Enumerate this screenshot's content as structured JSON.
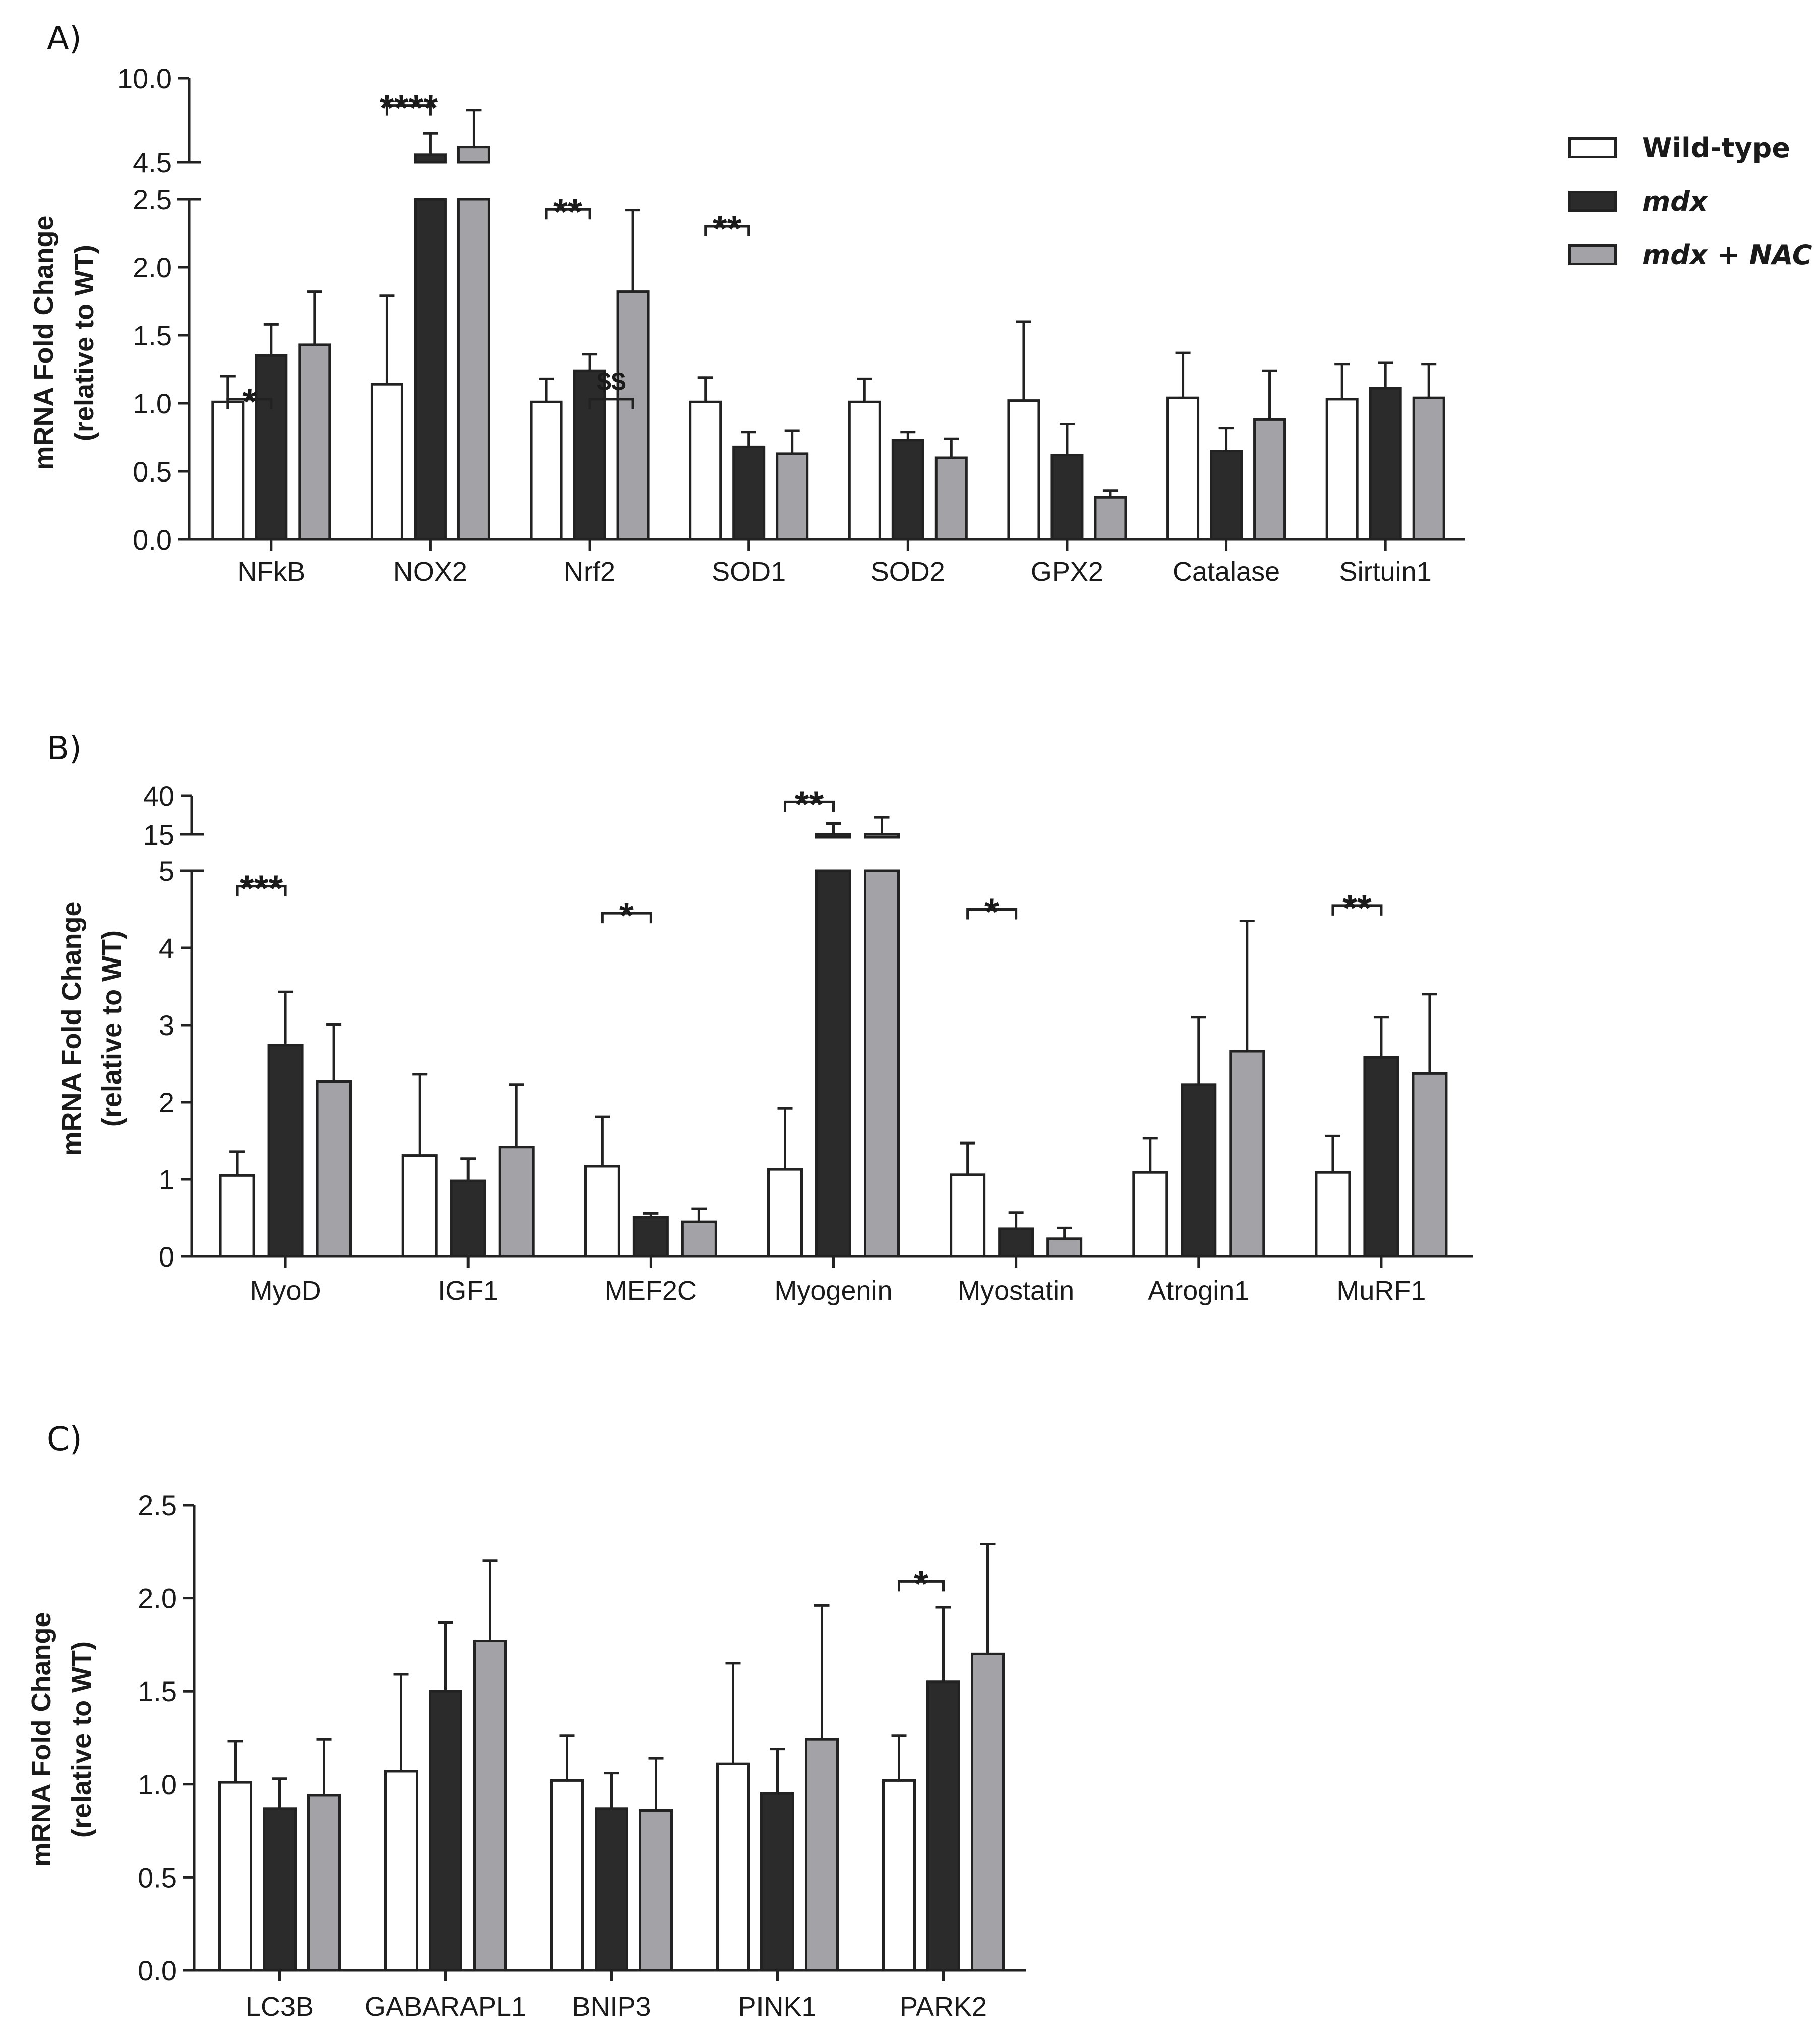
{
  "colors": {
    "wild_type": "#ffffff",
    "mdx": "#2b2b2b",
    "mdx_nac": "#a3a3a7",
    "axis": "#222222"
  },
  "legend": {
    "wild_type": "Wild-type",
    "mdx": "mdx",
    "mdx_nac": "mdx + NAC"
  },
  "chart_data": [
    {
      "type": "bar",
      "panel": "A)",
      "ylabel_line1": "mRNA Fold Change",
      "ylabel_line2": "(relative to WT)",
      "y_axis": "broken",
      "ylim_lower": [
        0,
        2.5
      ],
      "ylim_upper": [
        4.5,
        10.0
      ],
      "y_ticks_lower": [
        "0.0",
        "0.5",
        "1.0",
        "1.5",
        "2.0",
        "2.5"
      ],
      "y_ticks_upper": [
        "4.5",
        "10.0"
      ],
      "categories": [
        "NFkB",
        "NOX2",
        "Nrf2",
        "SOD1",
        "SOD2",
        "GPX2",
        "Catalase",
        "Sirtuin1"
      ],
      "series": [
        {
          "name": "Wild-type",
          "values": [
            1.01,
            1.14,
            1.01,
            1.01,
            1.01,
            1.02,
            1.04,
            1.03
          ],
          "errors": [
            0.19,
            0.65,
            0.17,
            0.18,
            0.17,
            0.58,
            0.33,
            0.26
          ]
        },
        {
          "name": "mdx",
          "values": [
            1.35,
            5.0,
            1.24,
            0.68,
            0.73,
            0.62,
            0.65,
            1.11
          ],
          "errors": [
            0.23,
            1.4,
            0.12,
            0.11,
            0.06,
            0.23,
            0.17,
            0.19
          ]
        },
        {
          "name": "mdx + NAC",
          "values": [
            1.43,
            5.5,
            1.82,
            0.63,
            0.6,
            0.31,
            0.88,
            1.04
          ],
          "errors": [
            0.39,
            2.4,
            0.6,
            0.17,
            0.14,
            0.05,
            0.36,
            0.25
          ]
        }
      ],
      "annotations": [
        {
          "label": "*",
          "category": 0,
          "from": 0,
          "to": 1,
          "y": 1.03
        },
        {
          "label": "****",
          "category": 1,
          "from": 0,
          "to": 1,
          "y": 8.2
        },
        {
          "label": "**",
          "category": 2,
          "from": 0,
          "to": 1,
          "y": 0.97
        },
        {
          "label": "$$",
          "category": 2,
          "from": 1,
          "to": 2,
          "y": 1.03
        },
        {
          "label": "**",
          "category": 3,
          "from": 0,
          "to": 1,
          "y": 0.92
        }
      ]
    },
    {
      "type": "bar",
      "panel": "B)",
      "ylabel_line1": "mRNA Fold Change",
      "ylabel_line2": "(relative to WT)",
      "y_axis": "broken",
      "ylim_lower": [
        0,
        5
      ],
      "ylim_upper": [
        15,
        40
      ],
      "y_ticks_lower": [
        "0",
        "1",
        "2",
        "3",
        "4",
        "5"
      ],
      "y_ticks_upper": [
        "15",
        "40"
      ],
      "categories": [
        "MyoD",
        "IGF1",
        "MEF2C",
        "Myogenin",
        "Myostatin",
        "Atrogin1",
        "MuRF1"
      ],
      "series": [
        {
          "name": "Wild-type",
          "values": [
            1.05,
            1.31,
            1.17,
            1.13,
            1.06,
            1.09,
            1.09
          ],
          "errors": [
            0.31,
            1.05,
            0.64,
            0.79,
            0.41,
            0.44,
            0.47
          ]
        },
        {
          "name": "mdx",
          "values": [
            2.74,
            0.98,
            0.51,
            15.0,
            0.36,
            2.23,
            2.58
          ],
          "errors": [
            0.69,
            0.29,
            0.05,
            7.0,
            0.21,
            0.87,
            0.52
          ]
        },
        {
          "name": "mdx + NAC",
          "values": [
            2.27,
            1.42,
            0.45,
            15.0,
            0.23,
            2.66,
            2.37
          ],
          "errors": [
            0.74,
            0.81,
            0.17,
            11.0,
            0.14,
            1.69,
            1.03
          ]
        }
      ],
      "annotations": [
        {
          "label": "***",
          "category": 0,
          "from": 0,
          "to": 1,
          "y": 0.96
        },
        {
          "label": "*",
          "category": 2,
          "from": 0,
          "to": 1,
          "y": 0.89
        },
        {
          "label": "**",
          "category": 3,
          "from": 0,
          "to": 1,
          "y": 36.0
        },
        {
          "label": "*",
          "category": 4,
          "from": 0,
          "to": 1,
          "y": 0.9
        },
        {
          "label": "**",
          "category": 6,
          "from": 0,
          "to": 1,
          "y": 0.91
        }
      ]
    },
    {
      "type": "bar",
      "panel": "C)",
      "ylabel_line1": "mRNA Fold Change",
      "ylabel_line2": "(relative to WT)",
      "y_axis": "linear",
      "ylim": [
        0,
        2.5
      ],
      "y_ticks": [
        "0.0",
        "0.5",
        "1.0",
        "1.5",
        "2.0",
        "2.5"
      ],
      "categories": [
        "LC3B",
        "GABARAPL1",
        "BNIP3",
        "PINK1",
        "PARK2"
      ],
      "series": [
        {
          "name": "Wild-type",
          "values": [
            1.01,
            1.07,
            1.02,
            1.11,
            1.02
          ],
          "errors": [
            0.22,
            0.52,
            0.24,
            0.54,
            0.24
          ]
        },
        {
          "name": "mdx",
          "values": [
            0.87,
            1.5,
            0.87,
            0.95,
            1.55
          ],
          "errors": [
            0.16,
            0.37,
            0.19,
            0.24,
            0.4
          ]
        },
        {
          "name": "mdx + NAC",
          "values": [
            0.94,
            1.77,
            0.86,
            1.24,
            1.7
          ],
          "errors": [
            0.3,
            0.43,
            0.28,
            0.72,
            0.59
          ]
        }
      ],
      "annotations": [
        {
          "label": "*",
          "category": 4,
          "from": 0,
          "to": 1,
          "y": 2.09
        }
      ]
    }
  ]
}
